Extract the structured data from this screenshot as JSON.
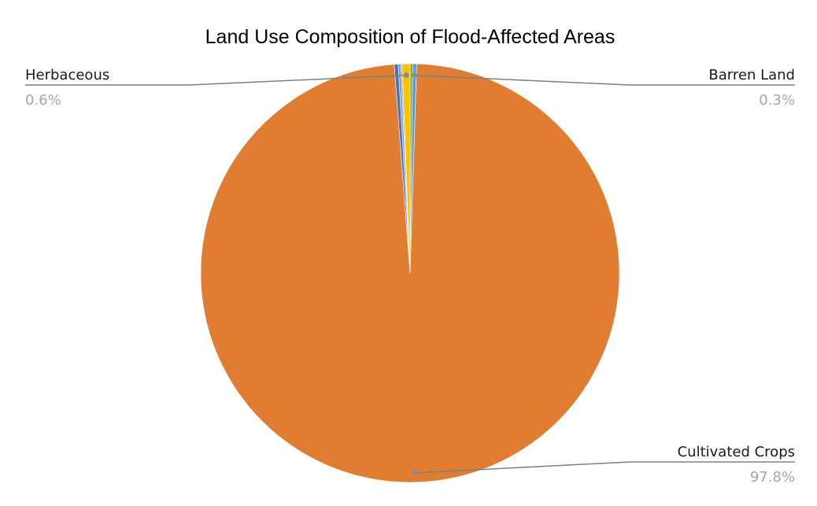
{
  "chart_data": {
    "type": "pie",
    "title": "Land Use Composition of Flood-Affected Areas",
    "start_angle_deg": 0,
    "direction": "clockwise",
    "slices": [
      {
        "name": "",
        "value": 0.2,
        "color": "#70ad47",
        "labelled": false
      },
      {
        "name": "Barren Land",
        "value": 0.3,
        "label": "0.3%",
        "color": "#5b9bd5",
        "labelled": true,
        "label_side": "right"
      },
      {
        "name": "Cultivated Crops",
        "value": 97.8,
        "label": "97.8%",
        "color": "#e07d32",
        "labelled": true,
        "label_side": "right"
      },
      {
        "name": "",
        "value": 0.3,
        "color": "#4472c4",
        "labelled": false
      },
      {
        "name": "",
        "value": 0.2,
        "color": "#7f9fc9",
        "labelled": false
      },
      {
        "name": "",
        "value": 0.1,
        "color": "#a5a5a5",
        "labelled": false
      },
      {
        "name": "Herbaceous",
        "value": 0.6,
        "label": "0.6%",
        "color": "#ffc000",
        "labelled": true,
        "label_side": "left"
      }
    ],
    "legend": "none",
    "data_labels": "outside with leader lines"
  }
}
